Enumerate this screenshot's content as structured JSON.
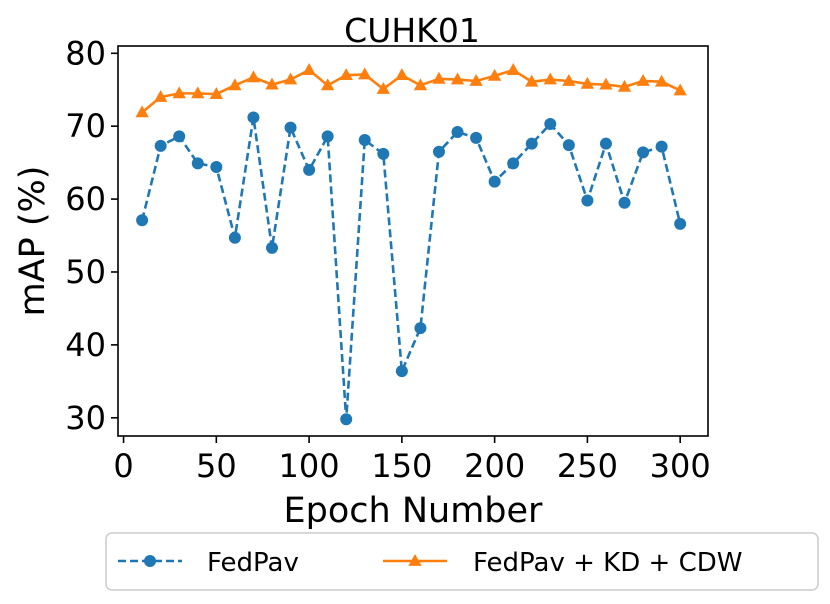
{
  "chart_data": {
    "type": "line",
    "title": "CUHK01",
    "xlabel": "Epoch Number",
    "ylabel": "mAP (%)",
    "xlim": [
      -3,
      315
    ],
    "ylim": [
      27.5,
      81
    ],
    "xticks": [
      0,
      50,
      100,
      150,
      200,
      250,
      300
    ],
    "yticks": [
      30,
      40,
      50,
      60,
      70,
      80
    ],
    "x": [
      10,
      20,
      30,
      40,
      50,
      60,
      70,
      80,
      90,
      100,
      110,
      120,
      130,
      140,
      150,
      160,
      170,
      180,
      190,
      200,
      210,
      220,
      230,
      240,
      250,
      260,
      270,
      280,
      290,
      300
    ],
    "legend_position": "bottom-center-outside",
    "series": [
      {
        "name": "FedPav",
        "color": "#1f77b4",
        "marker": "circle",
        "linestyle": "dashed",
        "values": [
          57.1,
          67.3,
          68.6,
          64.9,
          64.4,
          54.7,
          71.2,
          53.3,
          69.8,
          64.0,
          68.6,
          29.8,
          68.1,
          66.2,
          36.4,
          42.3,
          66.5,
          69.2,
          68.4,
          62.4,
          64.9,
          67.6,
          70.3,
          67.4,
          59.8,
          67.6,
          59.5,
          66.4,
          67.2,
          56.6
        ]
      },
      {
        "name": "FedPav + KD + CDW",
        "color": "#ff7f0e",
        "marker": "triangle",
        "linestyle": "solid",
        "values": [
          71.9,
          74.0,
          74.5,
          74.5,
          74.4,
          75.6,
          76.7,
          75.7,
          76.4,
          77.7,
          75.6,
          77.0,
          77.1,
          75.1,
          77.0,
          75.6,
          76.5,
          76.4,
          76.2,
          76.9,
          77.7,
          76.1,
          76.4,
          76.2,
          75.8,
          75.7,
          75.4,
          76.2,
          76.1,
          74.9
        ]
      }
    ]
  }
}
